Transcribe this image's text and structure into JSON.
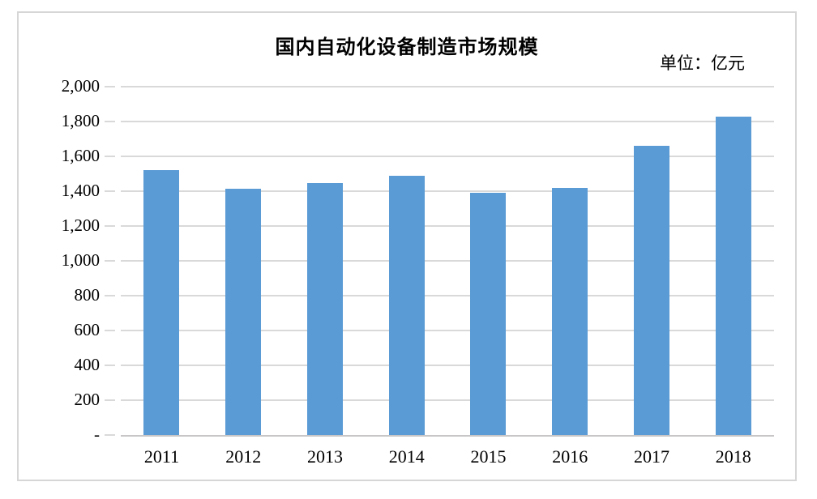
{
  "chart": {
    "title": "国内自动化设备制造市场规模",
    "unit_label": "单位：亿元"
  },
  "chart_data": {
    "type": "bar",
    "title": "国内自动化设备制造市场规模",
    "unit": "亿元",
    "categories": [
      "2011",
      "2012",
      "2013",
      "2014",
      "2015",
      "2016",
      "2017",
      "2018"
    ],
    "values": [
      1520,
      1415,
      1445,
      1490,
      1390,
      1420,
      1660,
      1830
    ],
    "series_name": "市场规模",
    "xlabel": "",
    "ylabel": "",
    "ylim": [
      0,
      2000
    ],
    "ytick_step": 200,
    "ytick_labels": [
      "-",
      "200",
      "400",
      "600",
      "800",
      "1,000",
      "1,200",
      "1,400",
      "1,600",
      "1,800",
      "2,000"
    ],
    "grid": true,
    "legend": false,
    "bar_color": "#5b9bd5",
    "gridline_color": "#d9d9d9",
    "axis_color": "#c8c6c6"
  }
}
